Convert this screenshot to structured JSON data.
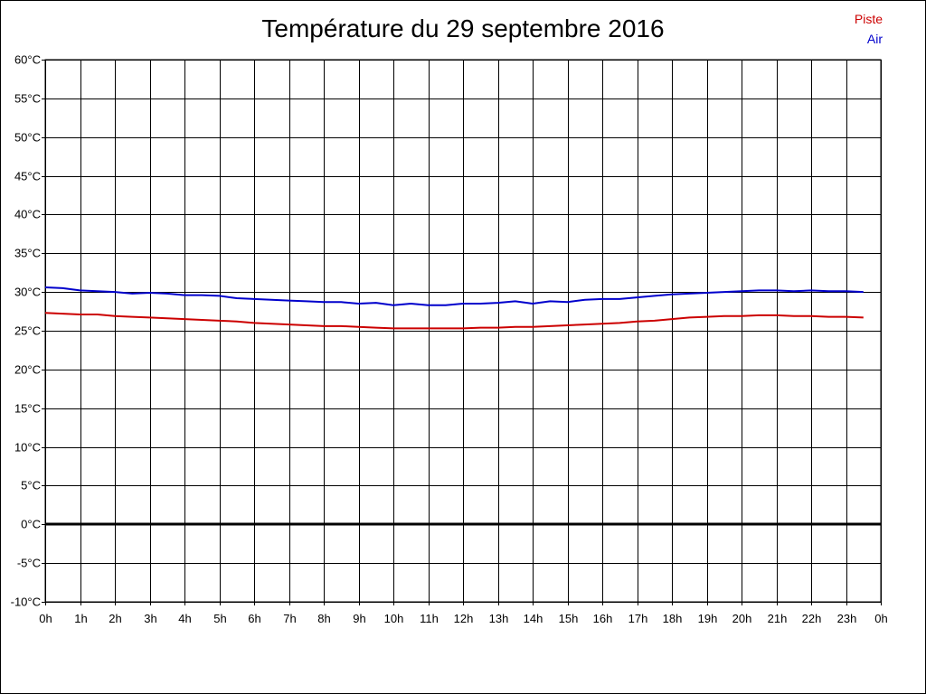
{
  "chart_data": {
    "type": "line",
    "title": "Température du 29 septembre 2016",
    "xlabel": "",
    "ylabel": "",
    "x_tick_labels": [
      "0h",
      "1h",
      "2h",
      "3h",
      "4h",
      "5h",
      "6h",
      "7h",
      "8h",
      "9h",
      "10h",
      "11h",
      "12h",
      "13h",
      "14h",
      "15h",
      "16h",
      "17h",
      "18h",
      "19h",
      "20h",
      "21h",
      "22h",
      "23h",
      "0h"
    ],
    "y_tick_labels": [
      "60°C",
      "55°C",
      "50°C",
      "45°C",
      "40°C",
      "35°C",
      "30°C",
      "25°C",
      "20°C",
      "15°C",
      "10°C",
      "5°C",
      "0°C",
      "-5°C",
      "-10°C"
    ],
    "xlim": [
      0,
      24
    ],
    "ylim": [
      -10,
      60
    ],
    "grid": true,
    "legend_position": "top-right",
    "series": [
      {
        "name": "Piste",
        "color": "#cc0000",
        "x": [
          0,
          0.5,
          1,
          1.5,
          2,
          2.5,
          3,
          3.5,
          4,
          4.5,
          5,
          5.5,
          6,
          6.5,
          7,
          7.5,
          8,
          8.5,
          9,
          9.5,
          10,
          10.5,
          11,
          11.5,
          12,
          12.5,
          13,
          13.5,
          14,
          14.5,
          15,
          15.5,
          16,
          16.5,
          17,
          17.5,
          18,
          18.5,
          19,
          19.5,
          20,
          20.5,
          21,
          21.5,
          22,
          22.5,
          23,
          23.5
        ],
        "y": [
          27.3,
          27.2,
          27.1,
          27.1,
          26.9,
          26.8,
          26.7,
          26.6,
          26.5,
          26.4,
          26.3,
          26.2,
          26.0,
          25.9,
          25.8,
          25.7,
          25.6,
          25.6,
          25.5,
          25.4,
          25.3,
          25.3,
          25.3,
          25.3,
          25.3,
          25.4,
          25.4,
          25.5,
          25.5,
          25.6,
          25.7,
          25.8,
          25.9,
          26.0,
          26.2,
          26.3,
          26.5,
          26.7,
          26.8,
          26.9,
          26.9,
          27.0,
          27.0,
          26.9,
          26.9,
          26.8,
          26.8,
          26.7
        ]
      },
      {
        "name": "Air",
        "color": "#0000cc",
        "x": [
          0,
          0.5,
          1,
          1.5,
          2,
          2.5,
          3,
          3.5,
          4,
          4.5,
          5,
          5.5,
          6,
          6.5,
          7,
          7.5,
          8,
          8.5,
          9,
          9.5,
          10,
          10.5,
          11,
          11.5,
          12,
          12.5,
          13,
          13.5,
          14,
          14.5,
          15,
          15.5,
          16,
          16.5,
          17,
          17.5,
          18,
          18.5,
          19,
          19.5,
          20,
          20.5,
          21,
          21.5,
          22,
          22.5,
          23,
          23.5
        ],
        "y": [
          30.6,
          30.5,
          30.2,
          30.1,
          30.0,
          29.8,
          29.9,
          29.8,
          29.6,
          29.6,
          29.5,
          29.2,
          29.1,
          29.0,
          28.9,
          28.8,
          28.7,
          28.7,
          28.5,
          28.6,
          28.3,
          28.5,
          28.3,
          28.3,
          28.5,
          28.5,
          28.6,
          28.8,
          28.5,
          28.8,
          28.7,
          29.0,
          29.1,
          29.1,
          29.3,
          29.5,
          29.7,
          29.8,
          29.9,
          30.0,
          30.1,
          30.2,
          30.2,
          30.1,
          30.2,
          30.1,
          30.1,
          30.0
        ]
      }
    ],
    "highlight_line": {
      "value": 0,
      "color": "#000000"
    }
  }
}
